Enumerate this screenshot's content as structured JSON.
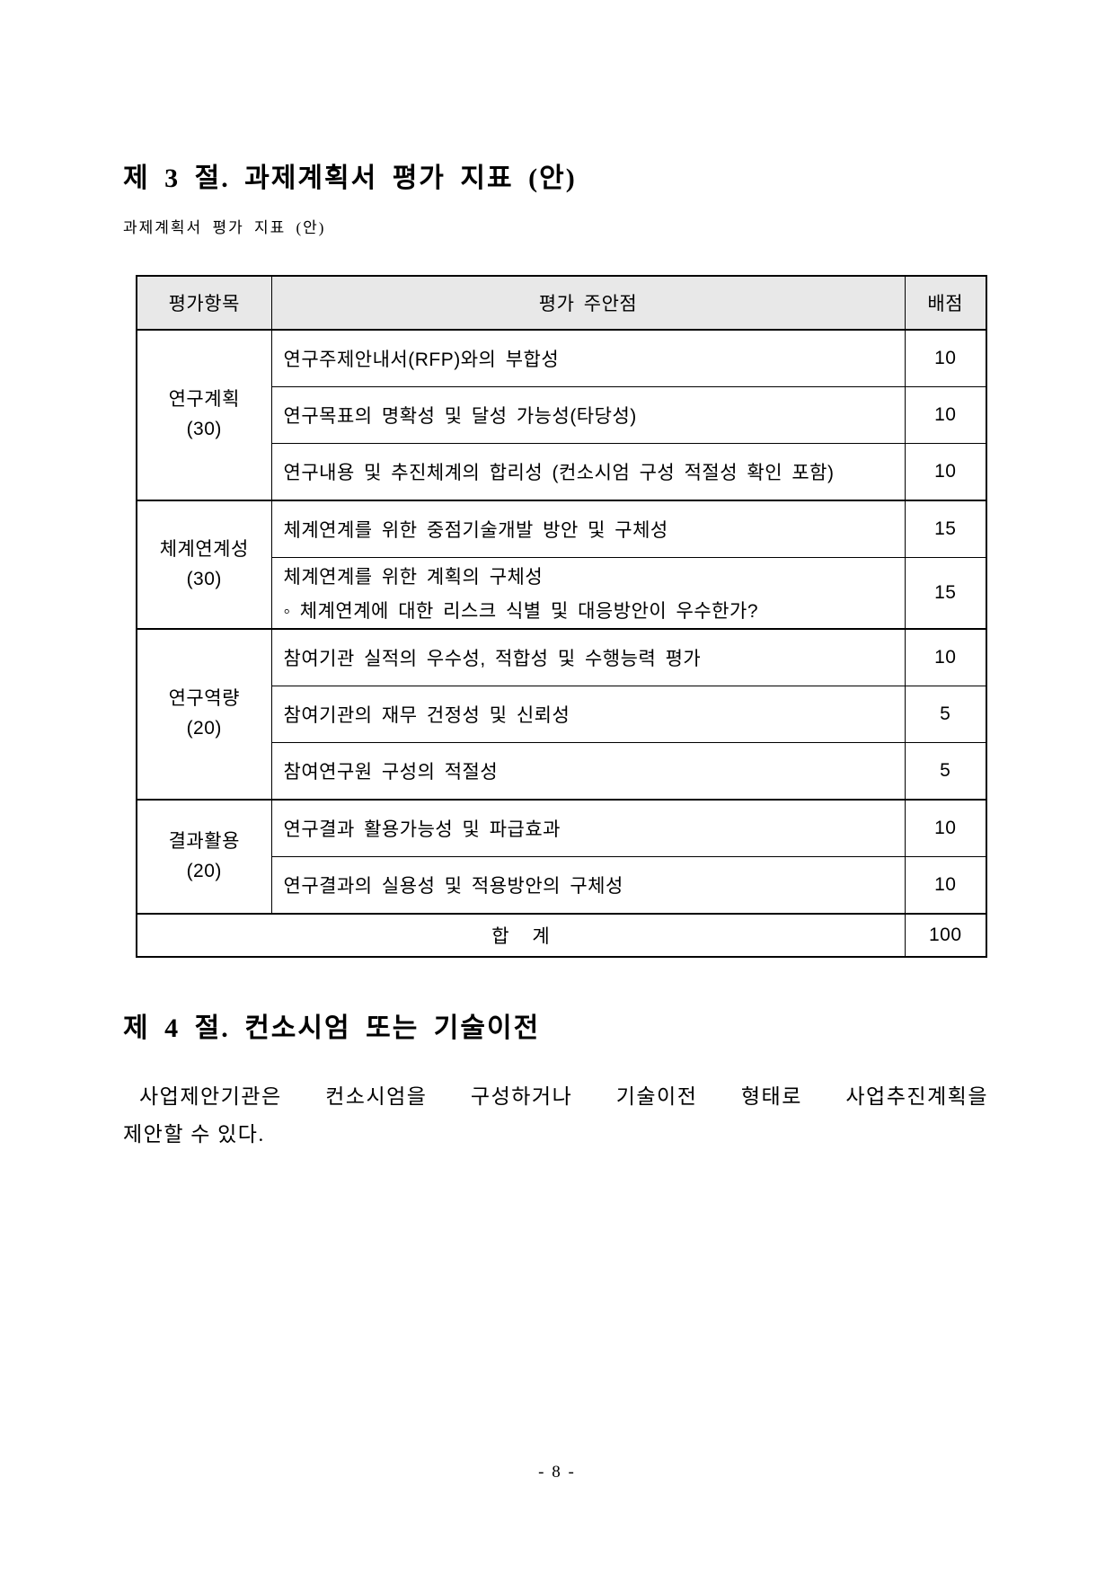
{
  "document": {
    "section3_title": "제 3 절. 과제계획서 평가 지표 (안)",
    "table_caption": "과제계획서 평가 지표 (안)",
    "section4_title": "제 4 절. 컨소시엄 또는 기술이전",
    "section4_paragraph_line1": "사업제안기관은 컨소시엄을 구성하거나 기술이전 형태로 사업추진계획을",
    "section4_paragraph_line2": "제안할 수 있다.",
    "page_number": "- 8 -"
  },
  "evaluation_table": {
    "header": {
      "category": "평가항목",
      "criteria": "평가 주안점",
      "points": "배점"
    },
    "header_bg": "#e8e8e8",
    "groups": [
      {
        "category": "연구계획",
        "subtotal": "(30)",
        "rows": [
          {
            "criteria": "연구주제안내서(RFP)와의 부합성",
            "points": "10"
          },
          {
            "criteria": "연구목표의 명확성 및 달성 가능성(타당성)",
            "points": "10"
          },
          {
            "criteria": "연구내용 및 추진체계의 합리성 (컨소시엄 구성 적절성 확인 포함)",
            "points": "10"
          }
        ]
      },
      {
        "category": "체계연계성",
        "subtotal": "(30)",
        "rows": [
          {
            "criteria": "체계연계를 위한 중점기술개발 방안 및 구체성",
            "points": "15"
          },
          {
            "criteria": "체계연계를 위한 계획의 구체성",
            "criteria_line2": "◦ 체계연계에 대한 리스크 식별 및 대응방안이 우수한가?",
            "points": "15"
          }
        ]
      },
      {
        "category": "연구역량",
        "subtotal": "(20)",
        "rows": [
          {
            "criteria": "참여기관 실적의 우수성, 적합성 및 수행능력 평가",
            "points": "10"
          },
          {
            "criteria": "참여기관의 재무 건정성 및 신뢰성",
            "points": "5"
          },
          {
            "criteria": "참여연구원 구성의 적절성",
            "points": "5"
          }
        ]
      },
      {
        "category": "결과활용",
        "subtotal": "(20)",
        "rows": [
          {
            "criteria": "연구결과 활용가능성 및 파급효과",
            "points": "10"
          },
          {
            "criteria": "연구결과의 실용성 및 적용방안의 구체성",
            "points": "10"
          }
        ]
      }
    ],
    "total": {
      "label": "합    계",
      "points": "100"
    }
  }
}
